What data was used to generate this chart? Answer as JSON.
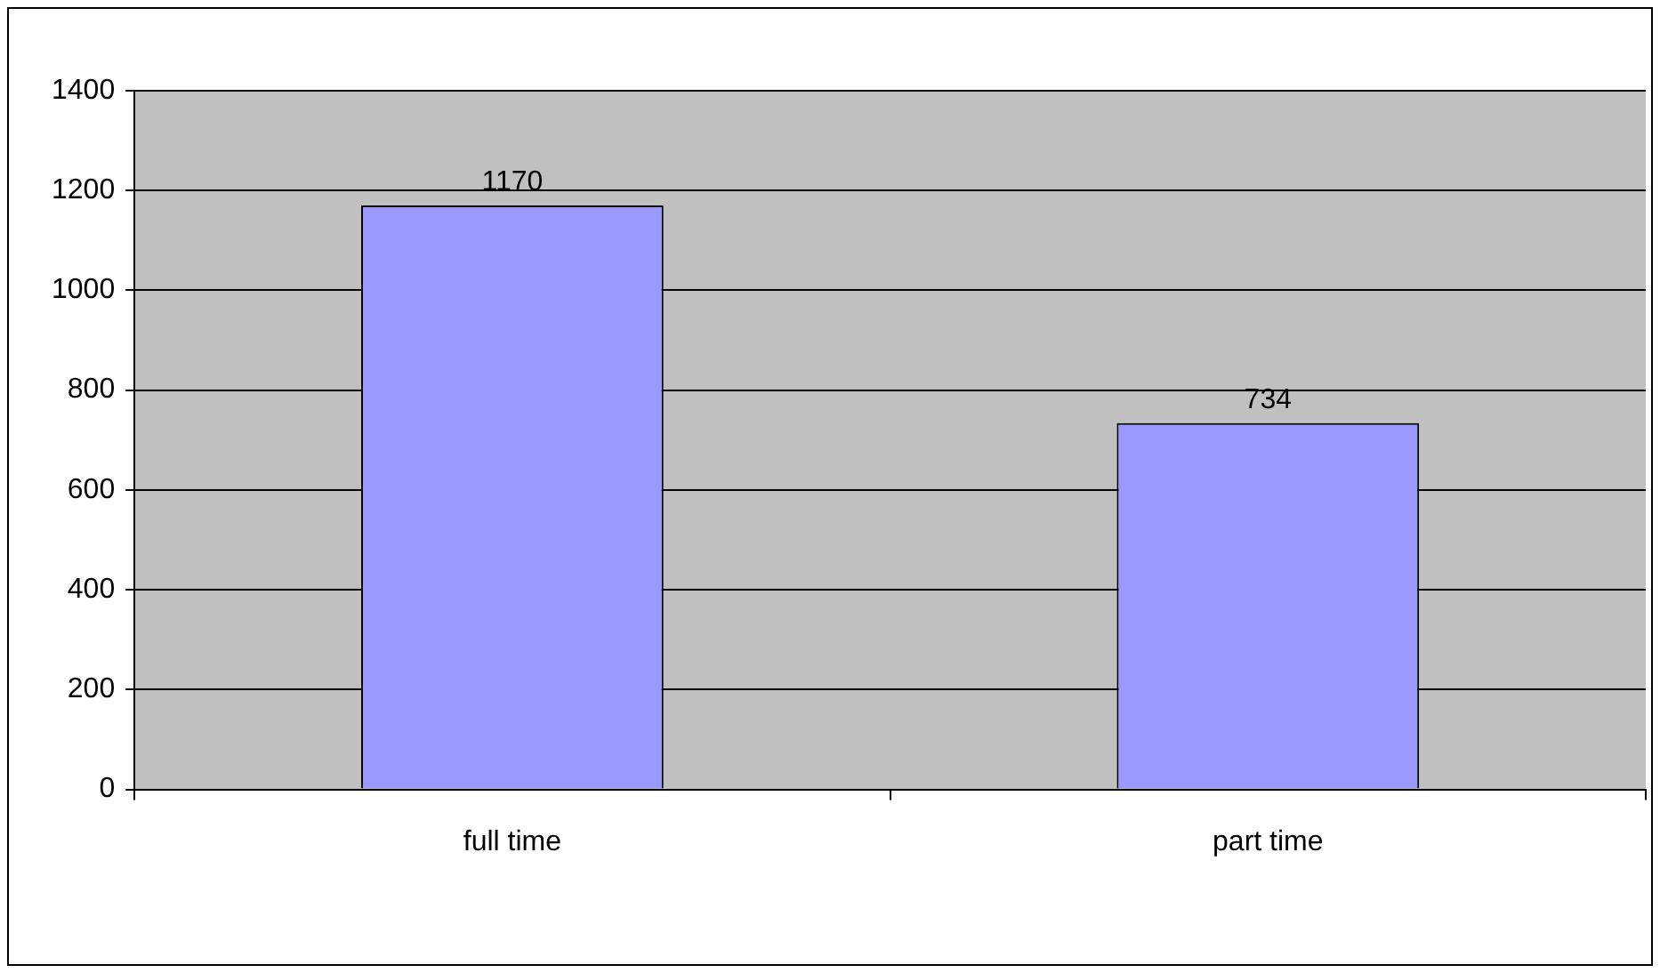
{
  "chart_data": {
    "type": "bar",
    "categories": [
      "full time",
      "part time"
    ],
    "values": [
      1170,
      734
    ],
    "color": "#9999ff",
    "ylim": [
      0,
      1400
    ],
    "yticks": [
      0,
      200,
      400,
      600,
      800,
      1000,
      1200,
      1400
    ],
    "grid": "y",
    "data_labels": true,
    "legend": false
  }
}
